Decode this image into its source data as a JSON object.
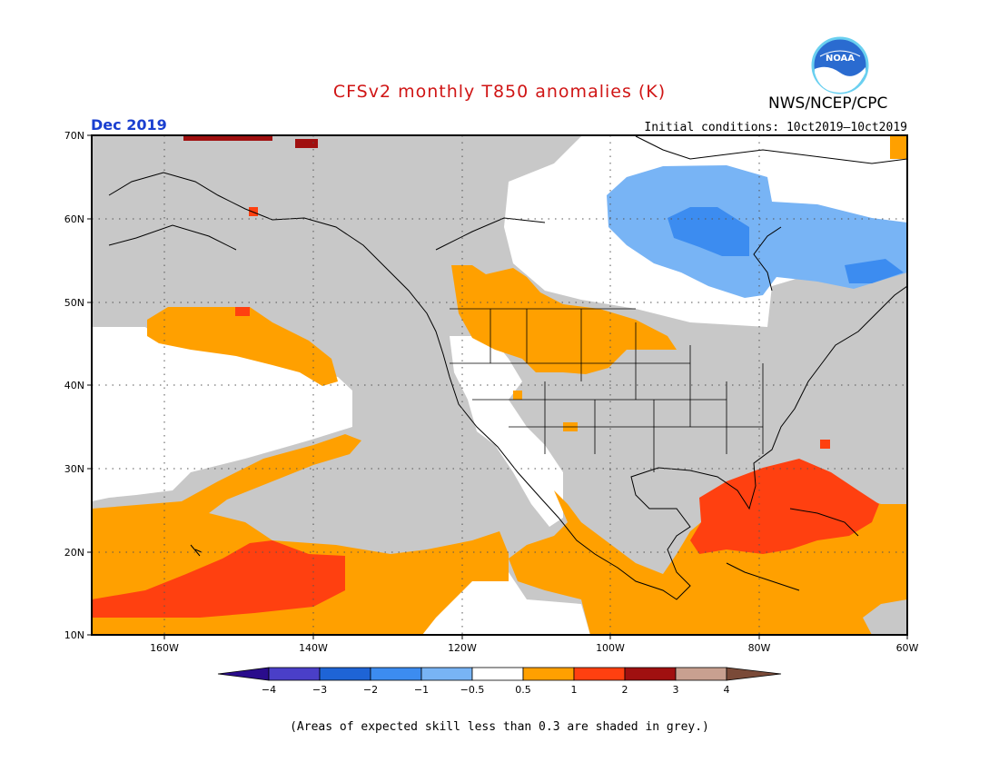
{
  "header": {
    "title": "CFSv2 monthly T850 anomalies (K)",
    "agency": "NWS/NCEP/CPC",
    "logo_label": "NOAA",
    "month": "Dec 2019",
    "initial_conditions": "Initial conditions: 10ct2019–10ct2019"
  },
  "map": {
    "projection": "cylindrical",
    "lon_range": [
      -170,
      -60
    ],
    "lat_range": [
      10,
      70
    ],
    "lat_labels": [
      "70N",
      "60N",
      "50N",
      "40N",
      "30N",
      "20N",
      "10N"
    ],
    "lon_labels": [
      "160W",
      "140W",
      "120W",
      "100W",
      "80W",
      "60W"
    ],
    "grid": "dotted",
    "grey_color": "#c8c8c8",
    "regions": [
      {
        "name": "Grey low-skill background",
        "category": "grey"
      },
      {
        "name": "Central North Pacific white area",
        "category": "white"
      },
      {
        "name": "Southwest US / Mexico white area",
        "category": "white"
      },
      {
        "name": "Eastern Pacific white area",
        "category": "white"
      },
      {
        "name": "Hudson Bay region white area",
        "category": "white"
      },
      {
        "name": "Northern Rockies orange area",
        "category": "0.5 to 1"
      },
      {
        "name": "North Pacific orange band",
        "category": "0.5 to 1"
      },
      {
        "name": "Subtropical Pacific orange area",
        "category": "0.5 to 1"
      },
      {
        "name": "Tropical Atlantic / Caribbean orange area",
        "category": "0.5 to 1"
      },
      {
        "name": "Hawaii region red area",
        "category": "1 to 2"
      },
      {
        "name": "Caribbean / Florida red area",
        "category": "1 to 2"
      },
      {
        "name": "Hudson Bay light blue area",
        "category": "-1 to -0.5"
      },
      {
        "name": "Hudson Bay blue area",
        "category": "-2 to -1"
      }
    ]
  },
  "colorbar": {
    "tick_labels": [
      "−4",
      "−3",
      "−2",
      "−1",
      "−0.5",
      "0.5",
      "1",
      "2",
      "3",
      "4"
    ],
    "colors": [
      "#2a0c8c",
      "#4a3fc8",
      "#1e64d6",
      "#3c8cf0",
      "#78b4f5",
      "#ffffff",
      "#ffa000",
      "#ff4010",
      "#a01010",
      "#c8a090",
      "#7a4a38"
    ]
  },
  "footnote": "(Areas of expected skill less than 0.3 are shaded in grey.)"
}
